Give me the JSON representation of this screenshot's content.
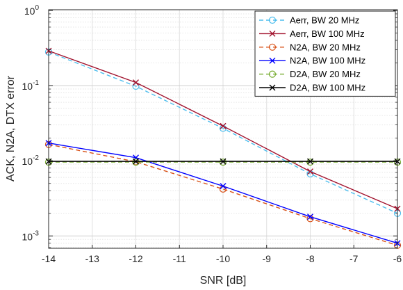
{
  "chart_data": {
    "type": "line",
    "title": "",
    "xlabel": "SNR [dB]",
    "ylabel": "ACK, N2A, DTX error",
    "xlim": [
      -14,
      -6
    ],
    "ylim": [
      0.0007,
      1
    ],
    "yscale": "log",
    "grid": true,
    "legend_position": "top-right",
    "x_tick_labels": [
      "-14",
      "-13",
      "-12",
      "-11",
      "-10",
      "-9",
      "-8",
      "-7",
      "-6"
    ],
    "y_tick_labels": [
      {
        "base": "10",
        "exp": "0"
      },
      {
        "base": "10",
        "exp": "-1"
      },
      {
        "base": "10",
        "exp": "-2"
      },
      {
        "base": "10",
        "exp": "-3"
      }
    ],
    "x": [
      -14,
      -12,
      -10,
      -8,
      -6
    ],
    "series": [
      {
        "name": "Aerr, BW 20 MHz",
        "values": [
          0.28,
          0.098,
          0.027,
          0.0067,
          0.002
        ],
        "color": "#4DBEEE",
        "dash": true,
        "marker": "circle"
      },
      {
        "name": "Aerr, BW 100 MHz",
        "values": [
          0.29,
          0.11,
          0.029,
          0.0072,
          0.0023
        ],
        "color": "#A2142F",
        "dash": false,
        "marker": "x"
      },
      {
        "name": "N2A, BW 20 MHz",
        "values": [
          0.0165,
          0.0097,
          0.0042,
          0.0017,
          0.00075
        ],
        "color": "#D95319",
        "dash": true,
        "marker": "circle"
      },
      {
        "name": "N2A, BW 100 MHz",
        "values": [
          0.0172,
          0.011,
          0.0046,
          0.0018,
          0.0008
        ],
        "color": "#0000FF",
        "dash": false,
        "marker": "x"
      },
      {
        "name": "D2A, BW 20 MHz",
        "values": [
          0.0096,
          0.0096,
          0.0096,
          0.0096,
          0.0096
        ],
        "color": "#77AC30",
        "dash": true,
        "marker": "circle"
      },
      {
        "name": "D2A, BW 100 MHz",
        "values": [
          0.0098,
          0.0098,
          0.0098,
          0.0098,
          0.0098
        ],
        "color": "#000000",
        "dash": false,
        "marker": "x"
      }
    ]
  }
}
